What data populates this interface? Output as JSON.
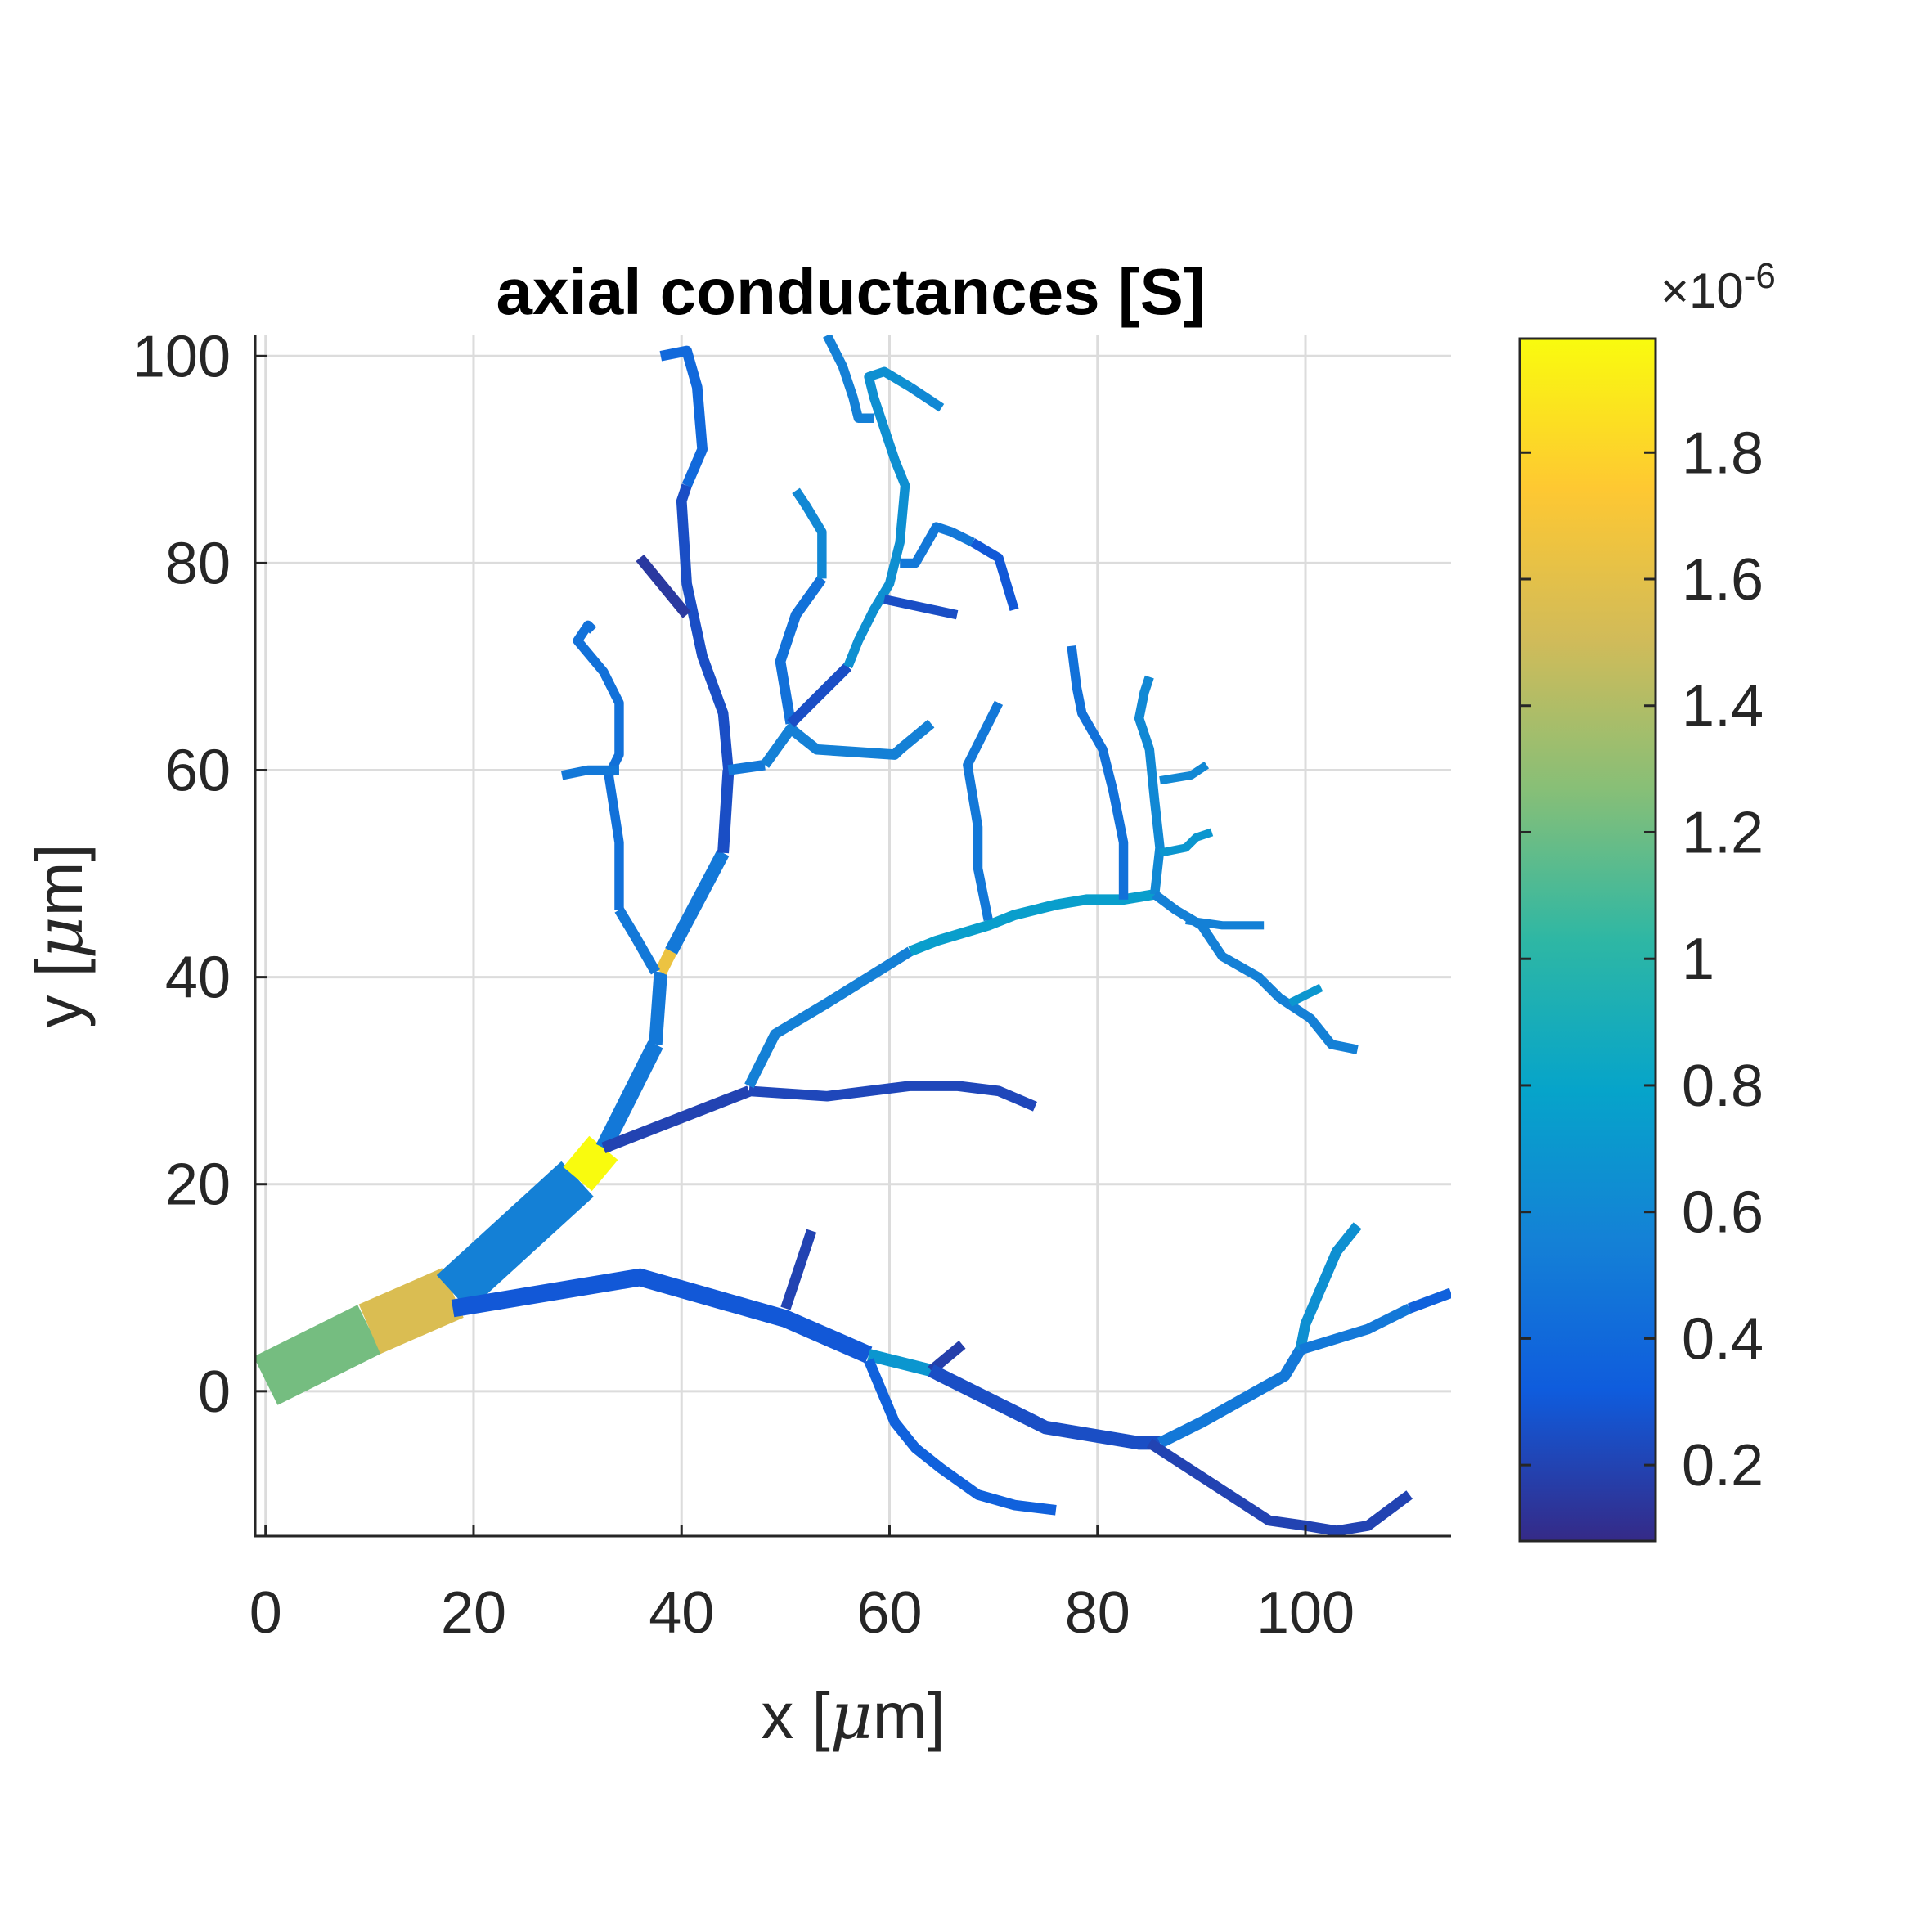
{
  "chart_data": {
    "type": "line",
    "title": "axial conductances [S]",
    "xlabel_prefix": "x [",
    "ylabel_prefix": "y [",
    "unit_symbol": "μ",
    "unit_suffix": "m]",
    "xlim": [
      -1,
      114
    ],
    "ylim": [
      -14,
      102
    ],
    "x_ticks": [
      "0",
      "20",
      "40",
      "60",
      "80",
      "100"
    ],
    "y_ticks": [
      "0",
      "20",
      "40",
      "60",
      "80",
      "100"
    ],
    "grid": true,
    "colorbar": {
      "range": [
        0.08,
        1.98
      ],
      "ticks": [
        "0.2",
        "0.4",
        "0.6",
        "0.8",
        "1",
        "1.2",
        "1.4",
        "1.6",
        "1.8"
      ],
      "multiplier_base": "×10",
      "multiplier_exp": "-6",
      "colormap": [
        "#352a87",
        "#0f5cdd",
        "#1481d6",
        "#06a4ca",
        "#2eb7a4",
        "#87bf77",
        "#d1bb59",
        "#fec832",
        "#f9fb0e"
      ]
    },
    "series": [
      {
        "x": [
          0,
          10
        ],
        "y": [
          1,
          6
        ],
        "value": 1.22,
        "width": 5.2
      },
      {
        "x": [
          10,
          18
        ],
        "y": [
          6,
          9.5
        ],
        "value": 1.55,
        "width": 5.2
      },
      {
        "x": [
          18,
          30
        ],
        "y": [
          9.5,
          20.5
        ],
        "value": 0.55,
        "width": 4.6
      },
      {
        "x": [
          30,
          32.5
        ],
        "y": [
          20.5,
          23.5
        ],
        "value": 1.98,
        "width": 3.6
      },
      {
        "x": [
          32.5,
          37.5
        ],
        "y": [
          23.5,
          33.5
        ],
        "value": 0.5,
        "width": 1.6
      },
      {
        "x": [
          37.5,
          38
        ],
        "y": [
          33.5,
          40.5
        ],
        "value": 0.5,
        "width": 1.3
      },
      {
        "x": [
          38,
          39
        ],
        "y": [
          40.5,
          42.5
        ],
        "value": 1.65,
        "width": 1.2
      },
      {
        "x": [
          39,
          44
        ],
        "y": [
          42.5,
          52
        ],
        "value": 0.5,
        "width": 1.3
      },
      {
        "x": [
          44,
          44.5
        ],
        "y": [
          52,
          60
        ],
        "value": 0.25,
        "width": 1.1
      },
      {
        "x": [
          44.5,
          44,
          42,
          40.5,
          40,
          40.5
        ],
        "y": [
          60,
          65.5,
          71,
          78,
          86,
          87.5
        ],
        "value": 0.25,
        "width": 1.0
      },
      {
        "x": [
          40.5,
          42,
          41.5,
          40.5,
          38
        ],
        "y": [
          87.5,
          91,
          97,
          100.5,
          100
        ],
        "value": 0.4,
        "width": 1.0
      },
      {
        "x": [
          40.5,
          36
        ],
        "y": [
          75,
          80.5
        ],
        "value": 0.15,
        "width": 1.0
      },
      {
        "x": [
          37.5,
          35.5,
          34
        ],
        "y": [
          40.5,
          44,
          46.5
        ],
        "value": 0.5,
        "width": 1.0
      },
      {
        "x": [
          34,
          34,
          33,
          34,
          34,
          32.5,
          30,
          31,
          31.5
        ],
        "y": [
          46.5,
          53,
          59.5,
          61.5,
          66.5,
          69.5,
          72.5,
          74,
          73.5
        ],
        "value": 0.45,
        "width": 0.9
      },
      {
        "x": [
          34,
          31,
          28.5
        ],
        "y": [
          60,
          60,
          59.5
        ],
        "value": 0.5,
        "width": 0.9
      },
      {
        "x": [
          44.5,
          48
        ],
        "y": [
          60,
          60.5
        ],
        "value": 0.5,
        "width": 1.0
      },
      {
        "x": [
          48,
          50.5,
          53,
          60.5,
          61,
          64
        ],
        "y": [
          60.5,
          64,
          62,
          61.5,
          62,
          64.5
        ],
        "value": 0.55,
        "width": 1.0
      },
      {
        "x": [
          50.5,
          49.5,
          51,
          53.5
        ],
        "y": [
          64.5,
          70.5,
          75,
          78.5
        ],
        "value": 0.45,
        "width": 1.0
      },
      {
        "x": [
          53.5,
          53.5,
          52,
          51
        ],
        "y": [
          78.5,
          83,
          85.5,
          87
        ],
        "value": 0.6,
        "width": 0.9
      },
      {
        "x": [
          50.5,
          56
        ],
        "y": [
          64.5,
          70
        ],
        "value": 0.25,
        "width": 1.0
      },
      {
        "x": [
          56,
          57,
          58.5,
          60,
          61,
          61.5,
          60.5,
          59.5,
          58.5,
          58,
          59.5,
          62
        ],
        "y": [
          70,
          72.5,
          75.5,
          78,
          82,
          87.5,
          90,
          93,
          96,
          98,
          98.5,
          97
        ],
        "value": 0.65,
        "width": 0.9
      },
      {
        "x": [
          62,
          65
        ],
        "y": [
          97,
          95
        ],
        "value": 0.6,
        "width": 0.9
      },
      {
        "x": [
          58.5,
          57,
          56.5,
          55.5,
          54
        ],
        "y": [
          94,
          94,
          96,
          99,
          102
        ],
        "value": 0.55,
        "width": 0.9
      },
      {
        "x": [
          59.5,
          66.5
        ],
        "y": [
          76.5,
          75
        ],
        "value": 0.25,
        "width": 0.9
      },
      {
        "x": [
          61,
          62.5,
          64.5,
          66,
          68
        ],
        "y": [
          80,
          80,
          83.5,
          83,
          82
        ],
        "value": 0.5,
        "width": 0.9
      },
      {
        "x": [
          68,
          70.5,
          72
        ],
        "y": [
          82,
          80.5,
          75.5
        ],
        "value": 0.3,
        "width": 0.9
      },
      {
        "x": [
          32.5,
          46.5
        ],
        "y": [
          23.5,
          29
        ],
        "value": 0.2,
        "width": 1.1
      },
      {
        "x": [
          46.5,
          54,
          62,
          66.5,
          70.5,
          74
        ],
        "y": [
          29,
          28.5,
          29.5,
          29.5,
          29,
          27.5
        ],
        "value": 0.22,
        "width": 1.0
      },
      {
        "x": [
          46.5,
          49,
          54,
          58,
          62
        ],
        "y": [
          29.5,
          34.5,
          37.5,
          40,
          42.5
        ],
        "value": 0.55,
        "width": 1.0
      },
      {
        "x": [
          62,
          64.5,
          69.5,
          72,
          74,
          76,
          79,
          82.5,
          85.5
        ],
        "y": [
          42.5,
          43.5,
          45,
          46,
          46.5,
          47,
          47.5,
          47.5,
          48
        ],
        "value": 0.75,
        "width": 1.0
      },
      {
        "x": [
          69.5,
          68.5,
          68.5,
          67.5,
          69.5,
          70.5
        ],
        "y": [
          45.5,
          50.5,
          54.5,
          60.5,
          64.5,
          66.5
        ],
        "value": 0.5,
        "width": 0.9
      },
      {
        "x": [
          82.5,
          82.5,
          81.5,
          80.5,
          78.5,
          78,
          77.5
        ],
        "y": [
          47.5,
          53,
          58,
          62,
          65.5,
          68,
          72
        ],
        "value": 0.45,
        "width": 0.9
      },
      {
        "x": [
          85.5,
          86,
          85.5,
          85,
          84,
          84.5,
          85
        ],
        "y": [
          48,
          52.5,
          57,
          62,
          65,
          67.5,
          69
        ],
        "value": 0.6,
        "width": 0.9
      },
      {
        "x": [
          86,
          89,
          90.5
        ],
        "y": [
          59,
          59.5,
          60.5
        ],
        "value": 0.6,
        "width": 0.8
      },
      {
        "x": [
          86,
          88.5,
          89.5,
          91
        ],
        "y": [
          52,
          52.5,
          53.5,
          54
        ],
        "value": 0.7,
        "width": 0.8
      },
      {
        "x": [
          85.5,
          87.5,
          90,
          92,
          95.5,
          97.5,
          100.5,
          102.5,
          105
        ],
        "y": [
          48,
          46.5,
          45,
          42,
          40,
          38,
          36,
          33.5,
          33
        ],
        "value": 0.55,
        "width": 0.9
      },
      {
        "x": [
          88.5,
          92,
          96
        ],
        "y": [
          45.5,
          45,
          45
        ],
        "value": 0.55,
        "width": 0.8
      },
      {
        "x": [
          98.5,
          101.5
        ],
        "y": [
          37.5,
          39
        ],
        "value": 0.7,
        "width": 0.8
      },
      {
        "x": [
          18,
          36,
          50,
          58
        ],
        "y": [
          8,
          11,
          7,
          3.5
        ],
        "value": 0.3,
        "width": 1.7
      },
      {
        "x": [
          50,
          52.5
        ],
        "y": [
          8,
          15.5
        ],
        "value": 0.2,
        "width": 1.0
      },
      {
        "x": [
          58,
          64
        ],
        "y": [
          3.5,
          2
        ],
        "value": 0.7,
        "width": 1.2
      },
      {
        "x": [
          64,
          67
        ],
        "y": [
          2,
          4.5
        ],
        "value": 0.18,
        "width": 1.0
      },
      {
        "x": [
          58,
          60.5,
          62.5,
          65,
          68.5,
          72,
          76
        ],
        "y": [
          3,
          -3,
          -5.5,
          -7.5,
          -10,
          -11,
          -11.5
        ],
        "value": 0.35,
        "width": 1.0
      },
      {
        "x": [
          64,
          75,
          84,
          86
        ],
        "y": [
          2,
          -3.5,
          -5,
          -5
        ],
        "value": 0.25,
        "width": 1.3
      },
      {
        "x": [
          86,
          90,
          98,
          99.5
        ],
        "y": [
          -5,
          -3,
          1.5,
          4
        ],
        "value": 0.5,
        "width": 1.1
      },
      {
        "x": [
          99.5,
          100,
          101.5,
          103,
          105
        ],
        "y": [
          4,
          6.5,
          10,
          13.5,
          16
        ],
        "value": 0.65,
        "width": 1.0
      },
      {
        "x": [
          99.5,
          106,
          110
        ],
        "y": [
          4,
          6,
          8
        ],
        "value": 0.5,
        "width": 1.0
      },
      {
        "x": [
          110,
          114
        ],
        "y": [
          8,
          9.5
        ],
        "value": 0.35,
        "width": 1.0
      },
      {
        "x": [
          85,
          96.5,
          100,
          103,
          106,
          110
        ],
        "y": [
          -5,
          -12.5,
          -13,
          -13.5,
          -13,
          -10
        ],
        "value": 0.2,
        "width": 1.0
      }
    ]
  }
}
